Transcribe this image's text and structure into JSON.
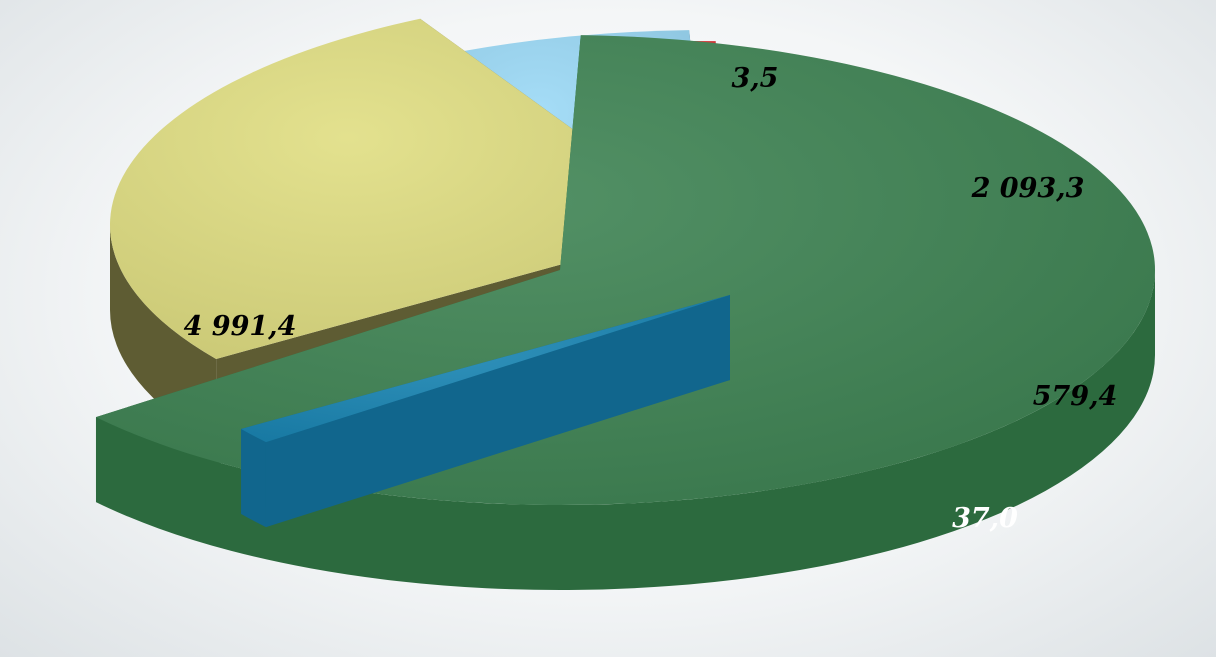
{
  "chart_data": {
    "type": "pie",
    "style": "3d-exploded",
    "title": "",
    "legend": "none",
    "slices": [
      {
        "label": "4 991,4",
        "value": 4991.4,
        "color": "#3f8454",
        "side_color": "#2c6a3e",
        "text_color": "#000000"
      },
      {
        "label": "3,5",
        "value": 3.5,
        "color": "#1a86b4",
        "side_color": "#11668d",
        "text_color": "#000000"
      },
      {
        "label": "2 093,3",
        "value": 2093.3,
        "color": "#e0de82",
        "side_color": "#5e5c33",
        "text_color": "#000000"
      },
      {
        "label": "579,4",
        "value": 579.4,
        "color": "#9bd9f6",
        "side_color": "#3f5766",
        "text_color": "#000000"
      },
      {
        "label": "37,0",
        "value": 37.0,
        "color": "#e23b3b",
        "side_color": "#661c1e",
        "text_color": "#ffffff"
      }
    ]
  }
}
